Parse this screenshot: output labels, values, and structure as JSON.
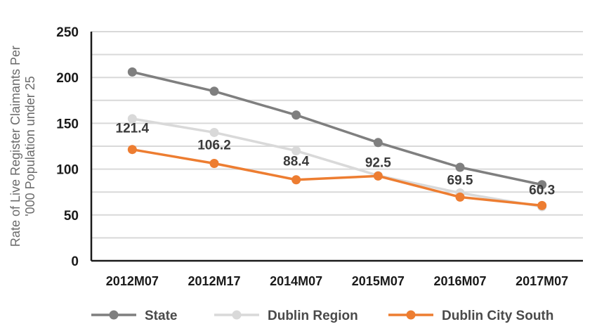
{
  "chart_data": {
    "type": "line",
    "title": "",
    "xlabel": "",
    "ylabel": "Rate of Live Register Claimants Per '000 Population under 25",
    "ylim": [
      0,
      250
    ],
    "yticks": [
      0,
      50,
      100,
      150,
      200,
      250
    ],
    "grid": true,
    "legend_position": "bottom",
    "categories": [
      "2012M07",
      "2012M17",
      "2014M07",
      "2015M07",
      "2016M07",
      "2017M07"
    ],
    "series": [
      {
        "name": "State",
        "color": "#7f7f7f",
        "values": [
          206,
          185,
          159,
          129,
          102,
          83
        ],
        "labels": [
          "",
          "",
          "",
          "",
          "",
          ""
        ]
      },
      {
        "name": "Dublin Region",
        "color": "#d9d9d9",
        "values": [
          155,
          140,
          120,
          93,
          74,
          59
        ],
        "labels": [
          "",
          "",
          "",
          "",
          "",
          ""
        ]
      },
      {
        "name": "Dublin City South",
        "color": "#ed7d31",
        "values": [
          121.4,
          106.2,
          88.4,
          92.5,
          69.5,
          60.3
        ],
        "labels": [
          "121.4",
          "106.2",
          "88.4",
          "92.5",
          "69.5",
          "60.3"
        ]
      }
    ]
  }
}
